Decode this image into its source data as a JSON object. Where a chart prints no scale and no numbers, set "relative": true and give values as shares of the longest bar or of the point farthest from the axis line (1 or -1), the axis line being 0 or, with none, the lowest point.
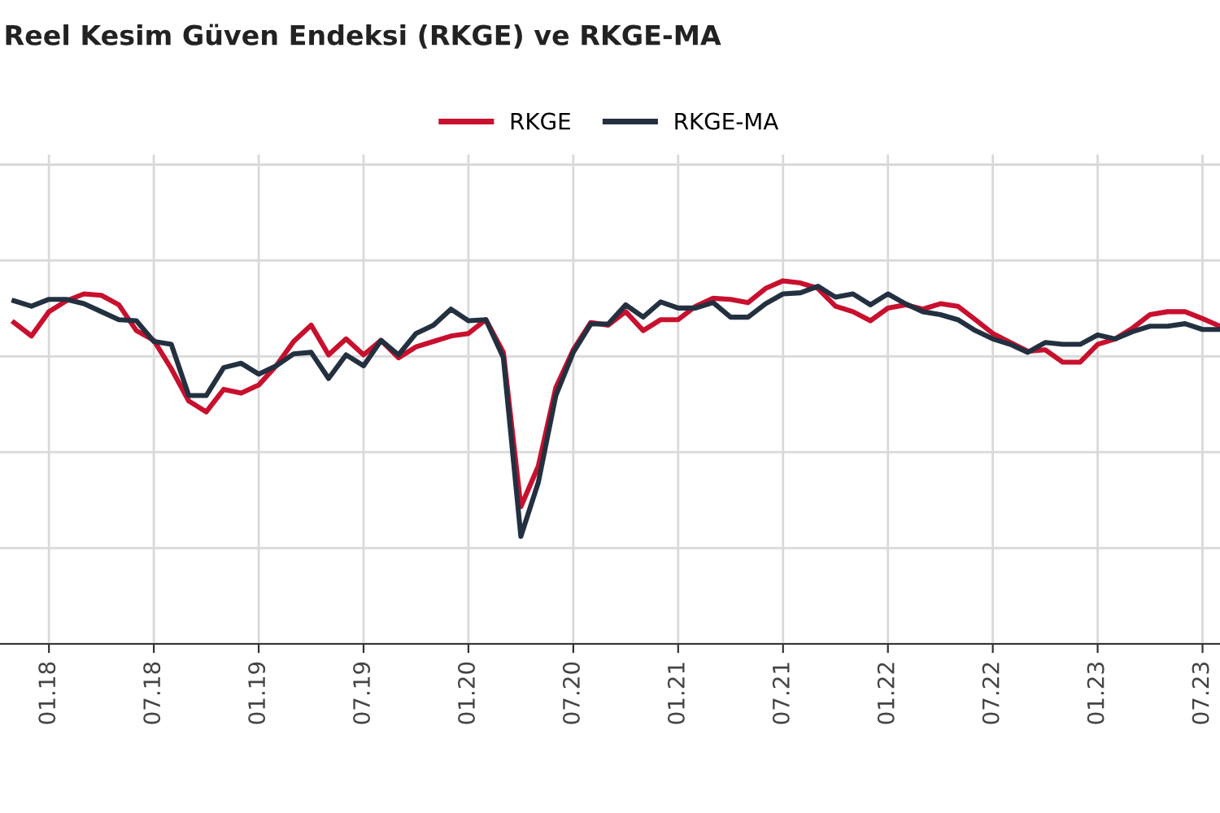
{
  "chart_data": {
    "type": "line",
    "title": "Reel Kesim Güven Endeksi (RKGE) ve RKGE-MA",
    "relative": true,
    "grid": true,
    "legend": "top",
    "marker": "none",
    "line_style": "solid",
    "categories": [
      null,
      null,
      "01.18",
      null,
      null,
      null,
      null,
      null,
      "07.18",
      null,
      null,
      null,
      null,
      null,
      "01.19",
      null,
      null,
      null,
      null,
      null,
      "07.19",
      null,
      null,
      null,
      null,
      null,
      "01.20",
      null,
      null,
      null,
      null,
      null,
      "07.20",
      null,
      null,
      null,
      null,
      null,
      "01.21",
      null,
      null,
      null,
      null,
      null,
      "07.21",
      null,
      null,
      null,
      null,
      null,
      "01.22",
      null,
      null,
      null,
      null,
      null,
      "07.22",
      null,
      null,
      null,
      null,
      null,
      "01.23",
      null,
      null,
      null,
      null,
      null,
      "07.23",
      null
    ],
    "series": [
      {
        "name": "RKGE",
        "color": "#c8102e",
        "values": [
          0.885,
          0.848,
          0.915,
          0.945,
          0.964,
          0.96,
          0.934,
          0.863,
          0.836,
          0.758,
          0.669,
          0.639,
          0.701,
          0.691,
          0.713,
          0.766,
          0.833,
          0.878,
          0.796,
          0.84,
          0.796,
          0.836,
          0.788,
          0.818,
          0.833,
          0.848,
          0.855,
          0.893,
          0.803,
          0.378,
          0.49,
          0.706,
          0.81,
          0.885,
          0.878,
          0.915,
          0.863,
          0.893,
          0.893,
          0.93,
          0.952,
          0.949,
          0.94,
          0.979,
          1.0,
          0.994,
          0.979,
          0.93,
          0.915,
          0.89,
          0.925,
          0.934,
          0.922,
          0.937,
          0.93,
          0.893,
          0.855,
          0.83,
          0.806,
          0.81,
          0.776,
          0.776,
          0.825,
          0.84,
          0.87,
          0.907,
          0.915,
          0.915,
          0.896,
          0.875
        ]
      },
      {
        "name": "RKGE-MA",
        "color": "#233040",
        "values": [
          0.945,
          0.93,
          0.949,
          0.949,
          0.937,
          0.915,
          0.893,
          0.89,
          0.833,
          0.825,
          0.684,
          0.684,
          0.761,
          0.773,
          0.743,
          0.766,
          0.799,
          0.803,
          0.731,
          0.796,
          0.766,
          0.836,
          0.796,
          0.855,
          0.878,
          0.922,
          0.89,
          0.893,
          0.788,
          0.296,
          0.445,
          0.684,
          0.803,
          0.881,
          0.881,
          0.934,
          0.9,
          0.942,
          0.925,
          0.925,
          0.94,
          0.9,
          0.9,
          0.937,
          0.964,
          0.967,
          0.985,
          0.955,
          0.964,
          0.934,
          0.964,
          0.937,
          0.915,
          0.907,
          0.893,
          0.863,
          0.84,
          0.825,
          0.803,
          0.83,
          0.825,
          0.825,
          0.851,
          0.84,
          0.86,
          0.875,
          0.875,
          0.882,
          0.866,
          0.866
        ]
      }
    ]
  }
}
